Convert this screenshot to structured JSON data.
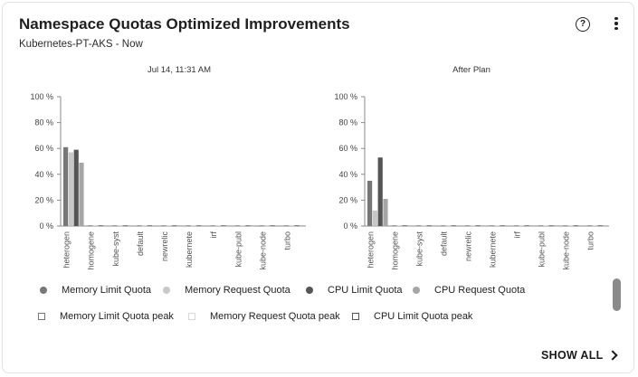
{
  "card": {
    "title": "Namespace Quotas Optimized Improvements",
    "subtitle": "Kubernetes-PT-AKS - Now",
    "help_icon": "help-circle-icon",
    "menu_icon": "more-vertical-icon",
    "show_all_label": "SHOW ALL"
  },
  "colors": {
    "memory_limit": "#777777",
    "memory_request": "#c8c8c8",
    "cpu_limit": "#555555",
    "cpu_request": "#a6a6a6",
    "axis": "#8a8a8a",
    "grid": "#e0e0e0"
  },
  "chart_data": [
    {
      "type": "bar",
      "title": "Jul 14, 11:31 AM",
      "categories": [
        "heterogen",
        "homogene",
        "kube-syst",
        "default",
        "newrelic",
        "kubernete",
        "irf",
        "kube-publ",
        "kube-node",
        "turbo"
      ],
      "ylim": [
        0,
        100
      ],
      "yticks": [
        "100 %",
        "80 %",
        "60 %",
        "40 %",
        "20 %",
        "0 %"
      ],
      "grid": false,
      "series": [
        {
          "name": "Memory Limit Quota",
          "values": [
            61,
            0.5,
            0.5,
            0.5,
            0.5,
            0.5,
            0.5,
            0.5,
            0.5,
            0.5
          ]
        },
        {
          "name": "Memory Request Quota",
          "values": [
            57,
            0.5,
            0.5,
            0.5,
            0.5,
            0.5,
            0.5,
            0.5,
            0.5,
            0.5
          ]
        },
        {
          "name": "CPU Limit Quota",
          "values": [
            59,
            0.5,
            0.5,
            0.5,
            0.5,
            0.5,
            0.5,
            0.5,
            0.5,
            0.5
          ]
        },
        {
          "name": "CPU Request Quota",
          "values": [
            49,
            0.5,
            0.5,
            0.5,
            0.5,
            0.5,
            0.5,
            0.5,
            0.5,
            0.5
          ]
        }
      ]
    },
    {
      "type": "bar",
      "title": "After Plan",
      "categories": [
        "heterogen",
        "homogene",
        "kube-syst",
        "default",
        "newrelic",
        "kubernete",
        "irf",
        "kube-publ",
        "kube-node",
        "turbo"
      ],
      "ylim": [
        0,
        100
      ],
      "yticks": [
        "100 %",
        "80 %",
        "60 %",
        "40 %",
        "20 %",
        "0 %"
      ],
      "grid": false,
      "series": [
        {
          "name": "Memory Limit Quota",
          "values": [
            35,
            0.5,
            0.5,
            0.5,
            0.5,
            0.5,
            0.5,
            0.5,
            0.5,
            0.5
          ]
        },
        {
          "name": "Memory Request Quota",
          "values": [
            12,
            0.5,
            0.5,
            0.5,
            0.5,
            0.5,
            0.5,
            0.5,
            0.5,
            0.5
          ]
        },
        {
          "name": "CPU Limit Quota",
          "values": [
            53,
            0.5,
            0.5,
            0.5,
            0.5,
            0.5,
            0.5,
            0.5,
            0.5,
            0.5
          ]
        },
        {
          "name": "CPU Request Quota",
          "values": [
            21,
            0.5,
            0.5,
            0.5,
            0.5,
            0.5,
            0.5,
            0.5,
            0.5,
            0.5
          ]
        }
      ]
    }
  ],
  "legend": {
    "row1": [
      {
        "label": "Memory Limit Quota",
        "color": "#777777",
        "shape": "dot"
      },
      {
        "label": "Memory Request Quota",
        "color": "#c8c8c8",
        "shape": "dot"
      },
      {
        "label": "CPU Limit Quota",
        "color": "#555555",
        "shape": "dot"
      },
      {
        "label": "CPU Request Quota",
        "color": "#a6a6a6",
        "shape": "dot"
      }
    ],
    "row2": [
      {
        "label": "Memory Limit Quota peak",
        "color": "#777777",
        "shape": "square"
      },
      {
        "label": "Memory Request Quota peak",
        "color": "#d8d8d8",
        "shape": "square"
      },
      {
        "label": "CPU Limit Quota peak",
        "color": "#555555",
        "shape": "square"
      }
    ]
  }
}
